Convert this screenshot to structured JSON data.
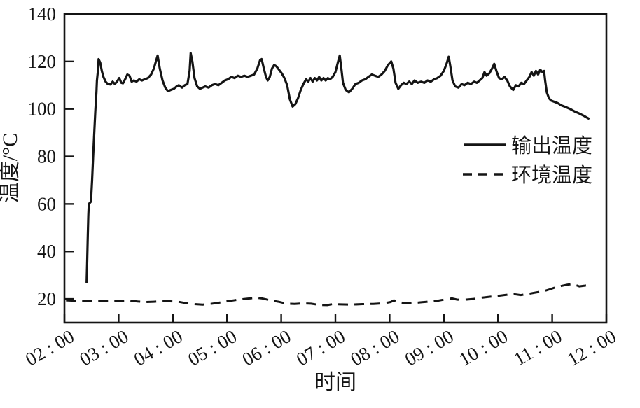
{
  "figure": {
    "background_color": "#ffffff",
    "ink_color": "#141414"
  },
  "chart_data": {
    "type": "line",
    "title": "",
    "xlabel": "时间",
    "ylabel": "温度/°C",
    "xlim": [
      2,
      12
    ],
    "ylim": [
      10,
      140
    ],
    "grid": false,
    "legend_position": "center-right",
    "y_ticks": [
      20,
      40,
      60,
      80,
      100,
      120,
      140
    ],
    "x_ticks": [
      {
        "value": 2,
        "label": "02 : 00"
      },
      {
        "value": 3,
        "label": "03 : 00"
      },
      {
        "value": 4,
        "label": "04 : 00"
      },
      {
        "value": 5,
        "label": "05 : 00"
      },
      {
        "value": 6,
        "label": "06 : 00"
      },
      {
        "value": 7,
        "label": "07 : 00"
      },
      {
        "value": 8,
        "label": "08 : 00"
      },
      {
        "value": 9,
        "label": "09 : 00"
      },
      {
        "value": 10,
        "label": "10 : 00"
      },
      {
        "value": 11,
        "label": "11 : 00"
      },
      {
        "value": 12,
        "label": "12 : 00"
      }
    ],
    "series": [
      {
        "name": "输出温度",
        "style": "solid",
        "points": [
          [
            2.41,
            27
          ],
          [
            2.42,
            36
          ],
          [
            2.43,
            46
          ],
          [
            2.44,
            55
          ],
          [
            2.45,
            60
          ],
          [
            2.49,
            61
          ],
          [
            2.51,
            70
          ],
          [
            2.53,
            80
          ],
          [
            2.55,
            90
          ],
          [
            2.57,
            99
          ],
          [
            2.59,
            107
          ],
          [
            2.6,
            112
          ],
          [
            2.62,
            116.5
          ],
          [
            2.63,
            121
          ],
          [
            2.66,
            119.5
          ],
          [
            2.69,
            116
          ],
          [
            2.72,
            113.5
          ],
          [
            2.76,
            111.5
          ],
          [
            2.8,
            110.5
          ],
          [
            2.85,
            110.3
          ],
          [
            2.89,
            111.5
          ],
          [
            2.93,
            110.5
          ],
          [
            2.97,
            111.5
          ],
          [
            3.01,
            113
          ],
          [
            3.05,
            111
          ],
          [
            3.08,
            110.8
          ],
          [
            3.12,
            112.5
          ],
          [
            3.16,
            114.5
          ],
          [
            3.2,
            114
          ],
          [
            3.24,
            111.5
          ],
          [
            3.28,
            112
          ],
          [
            3.33,
            111.5
          ],
          [
            3.38,
            112.5
          ],
          [
            3.43,
            112
          ],
          [
            3.48,
            112.5
          ],
          [
            3.54,
            113
          ],
          [
            3.6,
            114.5
          ],
          [
            3.65,
            117
          ],
          [
            3.7,
            121
          ],
          [
            3.72,
            122.5
          ],
          [
            3.76,
            117
          ],
          [
            3.81,
            112
          ],
          [
            3.86,
            109
          ],
          [
            3.91,
            107.5
          ],
          [
            3.96,
            108
          ],
          [
            4.02,
            108.5
          ],
          [
            4.07,
            109.5
          ],
          [
            4.11,
            110
          ],
          [
            4.17,
            109
          ],
          [
            4.22,
            110
          ],
          [
            4.27,
            110.5
          ],
          [
            4.31,
            116
          ],
          [
            4.33,
            123.5
          ],
          [
            4.36,
            120
          ],
          [
            4.4,
            113
          ],
          [
            4.45,
            109.5
          ],
          [
            4.5,
            108.5
          ],
          [
            4.55,
            109
          ],
          [
            4.6,
            109.5
          ],
          [
            4.66,
            109
          ],
          [
            4.72,
            110
          ],
          [
            4.78,
            110.5
          ],
          [
            4.84,
            110
          ],
          [
            4.9,
            111
          ],
          [
            4.96,
            112
          ],
          [
            5.02,
            112.5
          ],
          [
            5.08,
            113.5
          ],
          [
            5.14,
            113
          ],
          [
            5.2,
            114
          ],
          [
            5.26,
            113.5
          ],
          [
            5.32,
            114
          ],
          [
            5.38,
            113.5
          ],
          [
            5.44,
            114
          ],
          [
            5.5,
            114.5
          ],
          [
            5.56,
            117
          ],
          [
            5.61,
            120.5
          ],
          [
            5.64,
            121
          ],
          [
            5.68,
            117
          ],
          [
            5.72,
            113.5
          ],
          [
            5.75,
            112
          ],
          [
            5.79,
            113.5
          ],
          [
            5.83,
            117
          ],
          [
            5.87,
            118.5
          ],
          [
            5.91,
            118
          ],
          [
            5.96,
            116.5
          ],
          [
            6.01,
            115
          ],
          [
            6.06,
            113
          ],
          [
            6.11,
            110
          ],
          [
            6.16,
            104
          ],
          [
            6.21,
            101
          ],
          [
            6.26,
            102
          ],
          [
            6.31,
            104.5
          ],
          [
            6.36,
            108
          ],
          [
            6.41,
            110.5
          ],
          [
            6.46,
            112.5
          ],
          [
            6.5,
            111.5
          ],
          [
            6.54,
            113
          ],
          [
            6.58,
            111.5
          ],
          [
            6.62,
            113
          ],
          [
            6.66,
            112
          ],
          [
            6.7,
            113.5
          ],
          [
            6.74,
            112
          ],
          [
            6.78,
            113
          ],
          [
            6.82,
            112
          ],
          [
            6.86,
            113
          ],
          [
            6.9,
            112.5
          ],
          [
            6.95,
            113.5
          ],
          [
            7.0,
            115.5
          ],
          [
            7.05,
            120
          ],
          [
            7.08,
            122.5
          ],
          [
            7.11,
            117
          ],
          [
            7.14,
            111
          ],
          [
            7.19,
            108
          ],
          [
            7.25,
            107
          ],
          [
            7.31,
            108.5
          ],
          [
            7.37,
            110.5
          ],
          [
            7.43,
            111
          ],
          [
            7.49,
            112
          ],
          [
            7.55,
            112.5
          ],
          [
            7.61,
            113.5
          ],
          [
            7.67,
            114.5
          ],
          [
            7.73,
            114
          ],
          [
            7.79,
            113.5
          ],
          [
            7.85,
            114.5
          ],
          [
            7.91,
            116
          ],
          [
            7.97,
            118.5
          ],
          [
            8.03,
            120
          ],
          [
            8.07,
            117
          ],
          [
            8.11,
            111
          ],
          [
            8.16,
            108.5
          ],
          [
            8.21,
            110
          ],
          [
            8.26,
            111
          ],
          [
            8.31,
            110.5
          ],
          [
            8.36,
            111.5
          ],
          [
            8.41,
            110.5
          ],
          [
            8.46,
            112
          ],
          [
            8.52,
            111
          ],
          [
            8.58,
            111.5
          ],
          [
            8.64,
            111
          ],
          [
            8.7,
            112
          ],
          [
            8.76,
            111.5
          ],
          [
            8.82,
            112.5
          ],
          [
            8.88,
            113
          ],
          [
            8.94,
            114
          ],
          [
            9.0,
            116
          ],
          [
            9.05,
            119
          ],
          [
            9.09,
            122
          ],
          [
            9.12,
            118
          ],
          [
            9.16,
            112
          ],
          [
            9.21,
            109.5
          ],
          [
            9.27,
            109
          ],
          [
            9.33,
            110.5
          ],
          [
            9.38,
            110
          ],
          [
            9.44,
            111
          ],
          [
            9.5,
            110.5
          ],
          [
            9.56,
            111.5
          ],
          [
            9.61,
            111
          ],
          [
            9.66,
            112
          ],
          [
            9.71,
            113
          ],
          [
            9.75,
            115.5
          ],
          [
            9.79,
            114
          ],
          [
            9.84,
            115
          ],
          [
            9.89,
            117
          ],
          [
            9.93,
            119
          ],
          [
            9.97,
            116
          ],
          [
            10.02,
            113
          ],
          [
            10.07,
            112.5
          ],
          [
            10.12,
            113.5
          ],
          [
            10.17,
            112
          ],
          [
            10.22,
            109.5
          ],
          [
            10.28,
            108
          ],
          [
            10.33,
            110
          ],
          [
            10.38,
            109.5
          ],
          [
            10.43,
            111
          ],
          [
            10.48,
            110.5
          ],
          [
            10.53,
            112
          ],
          [
            10.58,
            113.5
          ],
          [
            10.62,
            115.5
          ],
          [
            10.66,
            114
          ],
          [
            10.7,
            116
          ],
          [
            10.74,
            114.5
          ],
          [
            10.78,
            116.5
          ],
          [
            10.82,
            115.5
          ],
          [
            10.85,
            116
          ],
          [
            10.87,
            112
          ],
          [
            10.9,
            107
          ],
          [
            10.94,
            104.5
          ],
          [
            10.98,
            103.5
          ],
          [
            11.04,
            103
          ],
          [
            11.1,
            102.5
          ],
          [
            11.17,
            101.5
          ],
          [
            11.25,
            100.8
          ],
          [
            11.33,
            100
          ],
          [
            11.41,
            99
          ],
          [
            11.49,
            98.2
          ],
          [
            11.57,
            97.3
          ],
          [
            11.63,
            96.5
          ],
          [
            11.67,
            96
          ]
        ]
      },
      {
        "name": "环境温度",
        "style": "dashed",
        "points": [
          [
            2.03,
            19.4
          ],
          [
            2.2,
            19.2
          ],
          [
            2.4,
            19.1
          ],
          [
            2.6,
            19
          ],
          [
            2.8,
            19
          ],
          [
            3.0,
            19.1
          ],
          [
            3.2,
            19.3
          ],
          [
            3.35,
            18.9
          ],
          [
            3.5,
            18.7
          ],
          [
            3.65,
            18.8
          ],
          [
            3.8,
            19
          ],
          [
            3.95,
            19
          ],
          [
            4.1,
            18.8
          ],
          [
            4.25,
            18.2
          ],
          [
            4.4,
            17.8
          ],
          [
            4.55,
            17.6
          ],
          [
            4.7,
            17.9
          ],
          [
            4.85,
            18.4
          ],
          [
            5.0,
            19
          ],
          [
            5.15,
            19.5
          ],
          [
            5.3,
            19.9
          ],
          [
            5.45,
            20.3
          ],
          [
            5.55,
            20.5
          ],
          [
            5.65,
            20.2
          ],
          [
            5.8,
            19.4
          ],
          [
            5.95,
            18.8
          ],
          [
            6.1,
            18
          ],
          [
            6.25,
            17.9
          ],
          [
            6.4,
            18.1
          ],
          [
            6.55,
            18
          ],
          [
            6.7,
            17.5
          ],
          [
            6.85,
            17.4
          ],
          [
            6.95,
            17.8
          ],
          [
            7.1,
            17.7
          ],
          [
            7.3,
            17.6
          ],
          [
            7.5,
            17.8
          ],
          [
            7.7,
            17.9
          ],
          [
            7.9,
            18.2
          ],
          [
            8.02,
            18.7
          ],
          [
            8.08,
            19.4
          ],
          [
            8.15,
            18.7
          ],
          [
            8.3,
            18.2
          ],
          [
            8.45,
            18.3
          ],
          [
            8.6,
            18.6
          ],
          [
            8.75,
            18.9
          ],
          [
            8.9,
            19.3
          ],
          [
            9.05,
            19.9
          ],
          [
            9.15,
            20.2
          ],
          [
            9.25,
            19.7
          ],
          [
            9.4,
            19.7
          ],
          [
            9.55,
            20
          ],
          [
            9.7,
            20.5
          ],
          [
            9.85,
            20.9
          ],
          [
            10.0,
            21.3
          ],
          [
            10.15,
            21.7
          ],
          [
            10.3,
            22
          ],
          [
            10.42,
            21.6
          ],
          [
            10.55,
            22.1
          ],
          [
            10.7,
            22.7
          ],
          [
            10.85,
            23.3
          ],
          [
            10.95,
            24
          ],
          [
            11.05,
            24.8
          ],
          [
            11.15,
            25.4
          ],
          [
            11.28,
            26
          ],
          [
            11.38,
            26.3
          ],
          [
            11.5,
            25.3
          ],
          [
            11.6,
            25.6
          ],
          [
            11.72,
            26.1
          ]
        ]
      }
    ]
  }
}
